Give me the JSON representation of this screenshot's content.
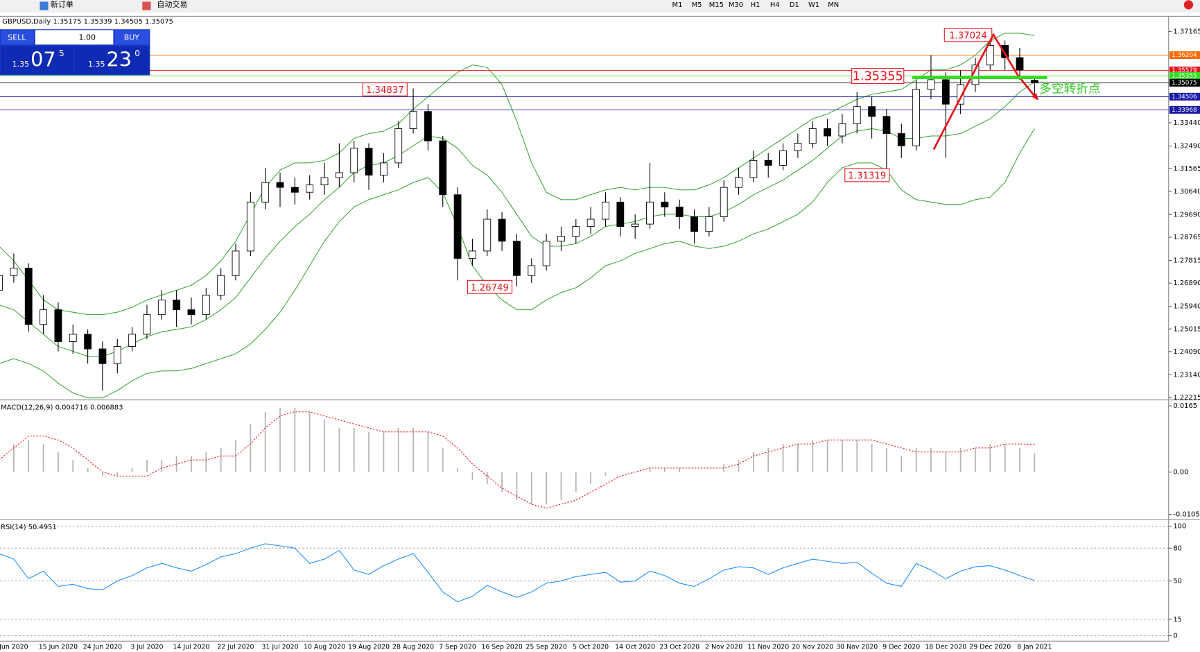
{
  "toolbar": {
    "new_order": "新订单",
    "auto_trade": "自动交易",
    "timeframes": [
      "M1",
      "M5",
      "M15",
      "M30",
      "H1",
      "H4",
      "D1",
      "W1",
      "MN"
    ]
  },
  "trade_panel": {
    "sell": "SELL",
    "buy": "BUY",
    "lots": "1.00",
    "bid": {
      "big": "1.35",
      "pips": "07",
      "frac": "5"
    },
    "ask": {
      "big": "1.35",
      "pips": "23",
      "frac": "0"
    }
  },
  "chart_data": [
    {
      "type": "candlestick",
      "title": "GBPUSD,Daily 1.35175 1.35339 1.34505 1.35075",
      "categories": [
        null,
        "Jun 2020",
        null,
        null,
        "15 Jun 2020",
        null,
        null,
        "24 Jun 2020",
        null,
        null,
        "3 Jul 2020",
        null,
        null,
        "14 Jul 2020",
        null,
        null,
        "22 Jul 2020",
        null,
        null,
        "31 Jul 2020",
        null,
        null,
        "10 Aug 2020",
        null,
        null,
        "19 Aug 2020",
        null,
        null,
        "28 Aug 2020",
        null,
        null,
        "7 Sep 2020",
        null,
        null,
        "16 Sep 2020",
        null,
        null,
        "25 Sep 2020",
        null,
        null,
        "5 Oct 2020",
        null,
        null,
        "14 Oct 2020",
        null,
        null,
        "23 Oct 2020",
        null,
        null,
        "2 Nov 2020",
        null,
        null,
        "11 Nov 2020",
        null,
        null,
        "20 Nov 2020",
        null,
        null,
        "30 Nov 2020",
        null,
        null,
        "9 Dec 2020",
        null,
        null,
        "18 Dec 2020",
        null,
        null,
        "29 Dec 2020",
        null,
        null,
        "8 Jan 2021"
      ],
      "ohlc": [
        [
          1.266,
          1.276,
          1.264,
          1.272
        ],
        [
          1.272,
          1.281,
          1.269,
          1.275
        ],
        [
          1.275,
          1.277,
          1.249,
          1.252
        ],
        [
          1.252,
          1.264,
          1.248,
          1.258
        ],
        [
          1.258,
          1.261,
          1.241,
          1.245
        ],
        [
          1.245,
          1.252,
          1.24,
          1.248
        ],
        [
          1.248,
          1.25,
          1.236,
          1.242
        ],
        [
          1.242,
          1.245,
          1.225,
          1.236
        ],
        [
          1.236,
          1.246,
          1.232,
          1.243
        ],
        [
          1.243,
          1.251,
          1.241,
          1.248
        ],
        [
          1.248,
          1.26,
          1.246,
          1.256
        ],
        [
          1.256,
          1.266,
          1.254,
          1.262
        ],
        [
          1.262,
          1.266,
          1.251,
          1.258
        ],
        [
          1.258,
          1.263,
          1.252,
          1.256
        ],
        [
          1.256,
          1.267,
          1.254,
          1.264
        ],
        [
          1.264,
          1.275,
          1.262,
          1.272
        ],
        [
          1.272,
          1.285,
          1.27,
          1.282
        ],
        [
          1.282,
          1.306,
          1.28,
          1.302
        ],
        [
          1.302,
          1.316,
          1.299,
          1.31
        ],
        [
          1.31,
          1.314,
          1.3,
          1.308
        ],
        [
          1.308,
          1.312,
          1.301,
          1.306
        ],
        [
          1.306,
          1.313,
          1.303,
          1.309
        ],
        [
          1.309,
          1.318,
          1.305,
          1.312
        ],
        [
          1.312,
          1.326,
          1.308,
          1.314
        ],
        [
          1.314,
          1.327,
          1.31,
          1.324
        ],
        [
          1.324,
          1.326,
          1.307,
          1.313
        ],
        [
          1.313,
          1.322,
          1.31,
          1.318
        ],
        [
          1.318,
          1.335,
          1.316,
          1.332
        ],
        [
          1.332,
          1.34837,
          1.33,
          1.339
        ],
        [
          1.339,
          1.342,
          1.323,
          1.327
        ],
        [
          1.327,
          1.329,
          1.3,
          1.305
        ],
        [
          1.305,
          1.308,
          1.27,
          1.279
        ],
        [
          1.279,
          1.287,
          1.276,
          1.282
        ],
        [
          1.282,
          1.299,
          1.28,
          1.295
        ],
        [
          1.295,
          1.298,
          1.282,
          1.286
        ],
        [
          1.286,
          1.289,
          1.26749,
          1.272
        ],
        [
          1.272,
          1.279,
          1.269,
          1.276
        ],
        [
          1.276,
          1.289,
          1.274,
          1.286
        ],
        [
          1.286,
          1.292,
          1.282,
          1.288
        ],
        [
          1.288,
          1.295,
          1.285,
          1.292
        ],
        [
          1.292,
          1.3,
          1.289,
          1.295
        ],
        [
          1.295,
          1.306,
          1.292,
          1.302
        ],
        [
          1.302,
          1.304,
          1.288,
          1.292
        ],
        [
          1.292,
          1.297,
          1.287,
          1.293
        ],
        [
          1.293,
          1.318,
          1.291,
          1.302
        ],
        [
          1.302,
          1.306,
          1.296,
          1.3
        ],
        [
          1.3,
          1.303,
          1.291,
          1.296
        ],
        [
          1.296,
          1.299,
          1.285,
          1.29
        ],
        [
          1.29,
          1.3,
          1.288,
          1.296
        ],
        [
          1.296,
          1.311,
          1.294,
          1.308
        ],
        [
          1.308,
          1.316,
          1.305,
          1.312
        ],
        [
          1.312,
          1.323,
          1.31,
          1.319
        ],
        [
          1.319,
          1.322,
          1.312,
          1.317
        ],
        [
          1.317,
          1.326,
          1.315,
          1.323
        ],
        [
          1.323,
          1.33,
          1.32,
          1.326
        ],
        [
          1.326,
          1.335,
          1.324,
          1.332
        ],
        [
          1.332,
          1.336,
          1.325,
          1.329
        ],
        [
          1.329,
          1.338,
          1.326,
          1.334
        ],
        [
          1.334,
          1.347,
          1.33,
          1.341
        ],
        [
          1.341,
          1.345,
          1.328,
          1.337
        ],
        [
          1.337,
          1.34,
          1.31319,
          1.33
        ],
        [
          1.33,
          1.334,
          1.32,
          1.325
        ],
        [
          1.325,
          1.352,
          1.323,
          1.348
        ],
        [
          1.348,
          1.362,
          1.344,
          1.352
        ],
        [
          1.352,
          1.355,
          1.32,
          1.342
        ],
        [
          1.342,
          1.356,
          1.338,
          1.35
        ],
        [
          1.35,
          1.361,
          1.347,
          1.358
        ],
        [
          1.358,
          1.37024,
          1.356,
          1.366
        ],
        [
          1.366,
          1.368,
          1.356,
          1.361
        ],
        [
          1.361,
          1.365,
          1.352,
          1.356
        ],
        [
          1.35175,
          1.35339,
          1.34505,
          1.35075
        ]
      ],
      "bands": {
        "color": "#2ca02c",
        "upper": [
          1.284,
          1.278,
          1.27,
          1.262,
          1.258,
          1.257,
          1.256,
          1.256,
          1.257,
          1.259,
          1.262,
          1.264,
          1.266,
          1.268,
          1.272,
          1.278,
          1.286,
          1.297,
          1.308,
          1.315,
          1.318,
          1.318,
          1.319,
          1.322,
          1.328,
          1.33,
          1.331,
          1.334,
          1.34,
          1.345,
          1.35,
          1.355,
          1.358,
          1.357,
          1.35,
          1.335,
          1.318,
          1.306,
          1.303,
          1.303,
          1.305,
          1.307,
          1.308,
          1.307,
          1.308,
          1.308,
          1.307,
          1.307,
          1.309,
          1.312,
          1.316,
          1.32,
          1.324,
          1.328,
          1.332,
          1.336,
          1.338,
          1.341,
          1.344,
          1.346,
          1.347,
          1.348,
          1.352,
          1.356,
          1.356,
          1.358,
          1.362,
          1.368,
          1.371,
          1.371,
          1.37
        ],
        "middle": [
          1.26,
          1.258,
          1.253,
          1.248,
          1.243,
          1.241,
          1.239,
          1.239,
          1.241,
          1.244,
          1.247,
          1.249,
          1.25,
          1.251,
          1.254,
          1.258,
          1.263,
          1.271,
          1.279,
          1.286,
          1.292,
          1.297,
          1.303,
          1.308,
          1.314,
          1.317,
          1.318,
          1.321,
          1.325,
          1.329,
          1.328,
          1.324,
          1.317,
          1.313,
          1.306,
          1.297,
          1.288,
          1.284,
          1.284,
          1.285,
          1.288,
          1.292,
          1.293,
          1.294,
          1.296,
          1.297,
          1.297,
          1.296,
          1.296,
          1.298,
          1.301,
          1.305,
          1.308,
          1.311,
          1.315,
          1.319,
          1.324,
          1.329,
          1.331,
          1.332,
          1.331,
          1.328,
          1.328,
          1.329,
          1.329,
          1.33,
          1.333,
          1.336,
          1.341,
          1.347,
          1.351
        ],
        "lower": [
          1.236,
          1.238,
          1.236,
          1.233,
          1.228,
          1.224,
          1.222,
          1.222,
          1.225,
          1.229,
          1.232,
          1.233,
          1.233,
          1.234,
          1.236,
          1.238,
          1.24,
          1.244,
          1.25,
          1.257,
          1.266,
          1.276,
          1.286,
          1.294,
          1.3,
          1.303,
          1.305,
          1.307,
          1.31,
          1.312,
          1.306,
          1.292,
          1.276,
          1.268,
          1.262,
          1.258,
          1.258,
          1.262,
          1.265,
          1.267,
          1.271,
          1.276,
          1.278,
          1.281,
          1.283,
          1.285,
          1.286,
          1.284,
          1.283,
          1.284,
          1.286,
          1.289,
          1.291,
          1.294,
          1.297,
          1.302,
          1.31,
          1.316,
          1.318,
          1.318,
          1.315,
          1.307,
          1.303,
          1.302,
          1.301,
          1.301,
          1.303,
          1.304,
          1.31,
          1.322,
          1.332
        ]
      },
      "levels": [
        {
          "value": 1.36204,
          "color": "#ff6a00"
        },
        {
          "value": 1.35579,
          "color": "#e8141c"
        },
        {
          "value": 1.35355,
          "color": "#33dd22"
        },
        {
          "value": 1.35075,
          "color": "#000000"
        },
        {
          "value": 1.34506,
          "color": "#1a1aa6"
        },
        {
          "value": 1.33968,
          "color": "#1a1aa6"
        }
      ],
      "annotations": [
        "1.37024",
        "1.35355",
        "1.34837",
        "1.31319",
        "1.26749",
        "多空转折点"
      ],
      "ylim": [
        1.2218,
        1.3776
      ],
      "yticks": [
        1.37165,
        {
          "value": 1.3344,
          "label": "1.33440"
        },
        {
          "value": 1.3249,
          "label": "1.32490"
        },
        1.31565,
        {
          "value": 1.3064,
          "label": "1.30640"
        },
        {
          "value": 1.2969,
          "label": "1.29690"
        },
        1.28765,
        1.27815,
        {
          "value": 1.2689,
          "label": "1.26890"
        },
        {
          "value": 1.2594,
          "label": "1.25940"
        },
        1.25015,
        {
          "value": 1.2409,
          "label": "1.24090"
        },
        {
          "value": 1.2314,
          "label": "1.23140"
        },
        1.22215
      ],
      "grid": false
    },
    {
      "type": "macd",
      "title": "MACD(12,26,9) 0.004716 0.006883",
      "histogram": {
        "color": "#b4b4b4",
        "values": [
          0.006,
          0.007,
          0.008,
          0.007,
          0.005,
          0.003,
          0.001,
          -0.001,
          -0.001,
          0.001,
          0.003,
          0.003,
          0.004,
          0.004,
          0.005,
          0.006,
          0.008,
          0.012,
          0.015,
          0.016,
          0.016,
          0.015,
          0.013,
          0.011,
          0.011,
          0.01,
          0.01,
          0.011,
          0.011,
          0.01,
          0.006,
          0.001,
          -0.002,
          -0.003,
          -0.005,
          -0.007,
          -0.008,
          -0.008,
          -0.007,
          -0.005,
          -0.003,
          -0.001,
          0.0,
          0.0,
          0.001,
          0.001,
          0.001,
          0.0,
          0.0,
          0.002,
          0.003,
          0.005,
          0.006,
          0.007,
          0.007,
          0.008,
          0.008,
          0.008,
          0.008,
          0.007,
          0.006,
          0.004,
          0.006,
          0.006,
          0.005,
          0.006,
          0.006,
          0.007,
          0.007,
          0.006,
          0.004716
        ]
      },
      "signal": {
        "color": "#e8141c",
        "values": [
          0.003,
          0.006,
          0.009,
          0.009,
          0.008,
          0.006,
          0.003,
          0.0,
          -0.001,
          -0.001,
          -0.001,
          0.001,
          0.002,
          0.003,
          0.003,
          0.004,
          0.004,
          0.007,
          0.011,
          0.014,
          0.015,
          0.015,
          0.014,
          0.013,
          0.012,
          0.011,
          0.01,
          0.01,
          0.01,
          0.01,
          0.009,
          0.006,
          0.002,
          -0.001,
          -0.004,
          -0.006,
          -0.008,
          -0.009,
          -0.008,
          -0.007,
          -0.005,
          -0.003,
          -0.001,
          0.0,
          0.001,
          0.001,
          0.001,
          0.001,
          0.001,
          0.001,
          0.002,
          0.004,
          0.005,
          0.006,
          0.007,
          0.007,
          0.008,
          0.008,
          0.008,
          0.008,
          0.007,
          0.006,
          0.005,
          0.005,
          0.005,
          0.005,
          0.006,
          0.006,
          0.007,
          0.007,
          0.006883
        ]
      },
      "ylim": [
        -0.0114,
        0.0176
      ],
      "yticks": [
        0.0165,
        {
          "value": 0,
          "label": "0.00"
        },
        -0.010571
      ],
      "grid": false
    },
    {
      "type": "rsi",
      "title": "RSI(14) 50.4951",
      "color": "#1e90ff",
      "values": [
        75,
        70,
        52,
        59,
        45,
        47,
        43,
        42,
        50,
        55,
        62,
        66,
        62,
        59,
        65,
        72,
        75,
        80,
        84,
        82,
        80,
        66,
        70,
        78,
        60,
        56,
        64,
        70,
        75,
        58,
        40,
        31,
        36,
        46,
        40,
        35,
        40,
        48,
        50,
        54,
        56,
        58,
        49,
        50,
        59,
        55,
        48,
        45,
        52,
        60,
        63,
        62,
        56,
        62,
        66,
        70,
        68,
        66,
        67,
        57,
        48,
        45,
        66,
        60,
        52,
        59,
        63,
        64,
        60,
        55,
        50.4951
      ],
      "ylim": [
        -4.2,
        104.9
      ],
      "yticks": [
        100,
        80,
        50,
        15,
        0
      ],
      "grid": true
    }
  ]
}
